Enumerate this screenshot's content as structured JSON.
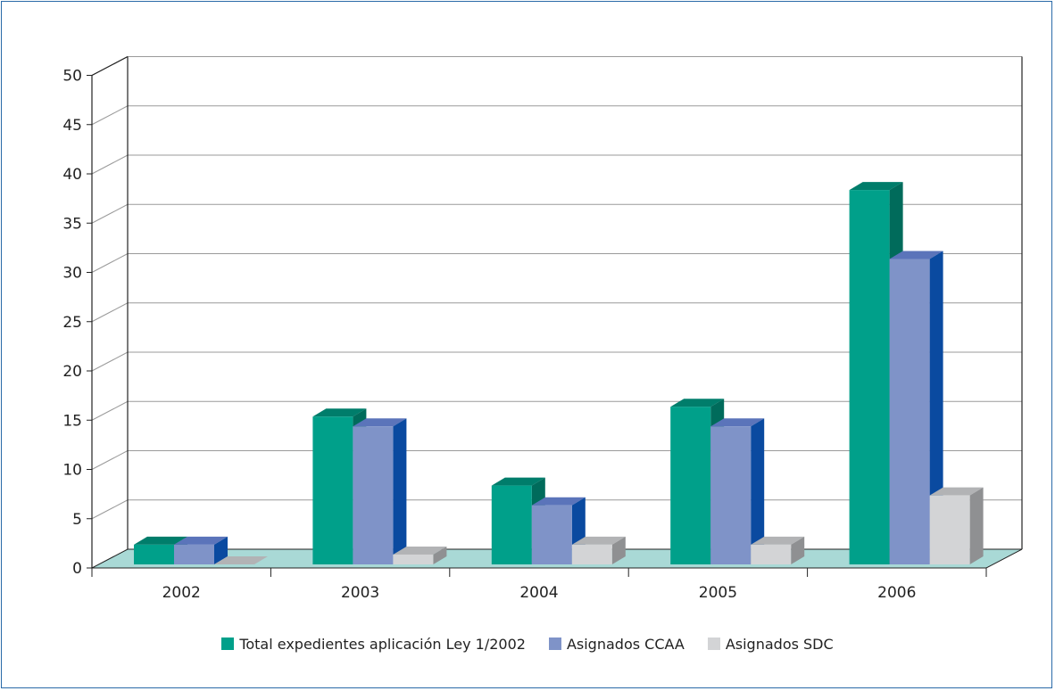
{
  "chart_data": {
    "type": "bar",
    "title": "",
    "xlabel": "",
    "ylabel": "",
    "categories": [
      "2002",
      "2003",
      "2004",
      "2005",
      "2006"
    ],
    "y_ticks": [
      "0",
      "5",
      "10",
      "15",
      "20",
      "25",
      "30",
      "35",
      "40",
      "45",
      "50"
    ],
    "ylim": [
      0,
      50
    ],
    "grid": true,
    "legend_position": "bottom",
    "series": [
      {
        "name": "Total expedientes aplicación Ley 1/2002",
        "values": [
          2,
          15,
          8,
          16,
          38
        ],
        "color": "#00a08a",
        "side_color": "#006b5b",
        "top_color": "#007d6b"
      },
      {
        "name": "Asignados CCAA",
        "values": [
          2,
          14,
          6,
          14,
          31
        ],
        "color": "#7f93c8",
        "side_color": "#0a4aa0",
        "top_color": "#5b74ba"
      },
      {
        "name": "Asignados SDC",
        "values": [
          0,
          1,
          2,
          2,
          7
        ],
        "color": "#d3d4d6",
        "side_color": "#8f9092",
        "top_color": "#b2b3b5"
      }
    ]
  }
}
